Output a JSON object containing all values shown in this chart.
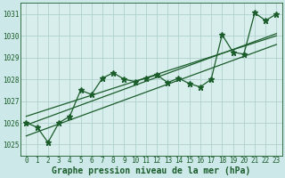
{
  "title": "Graphe pression niveau de la mer (hPa)",
  "background_color": "#cce8e8",
  "plot_bg_color": "#d8eeed",
  "grid_color": "#b0d0cc",
  "line_color": "#1a5c2a",
  "hours": [
    0,
    1,
    2,
    3,
    4,
    5,
    6,
    7,
    8,
    9,
    10,
    11,
    12,
    13,
    14,
    15,
    16,
    17,
    18,
    19,
    20,
    21,
    22,
    23
  ],
  "pressure": [
    1026.0,
    1025.8,
    1025.1,
    1026.0,
    1026.3,
    1027.5,
    1027.3,
    1028.05,
    1028.3,
    1028.0,
    1027.9,
    1028.05,
    1028.2,
    1027.85,
    1028.05,
    1027.8,
    1027.65,
    1028.0,
    1030.05,
    1029.25,
    1029.15,
    1031.05,
    1030.7,
    1031.0
  ],
  "trend_line1": [
    [
      0,
      23
    ],
    [
      1025.4,
      1029.6
    ]
  ],
  "trend_line2": [
    [
      0,
      23
    ],
    [
      1025.9,
      1030.1
    ]
  ],
  "trend_line3": [
    [
      0,
      23
    ],
    [
      1026.3,
      1030.0
    ]
  ],
  "ylim": [
    1024.5,
    1031.5
  ],
  "yticks": [
    1025,
    1026,
    1027,
    1028,
    1029,
    1030,
    1031
  ],
  "xticks": [
    0,
    1,
    2,
    3,
    4,
    5,
    6,
    7,
    8,
    9,
    10,
    11,
    12,
    13,
    14,
    15,
    16,
    17,
    18,
    19,
    20,
    21,
    22,
    23
  ],
  "marker": "*",
  "marker_size": 4.5,
  "line_width": 0.9,
  "tick_fontsize": 5.5,
  "xlabel_fontsize": 7.0
}
